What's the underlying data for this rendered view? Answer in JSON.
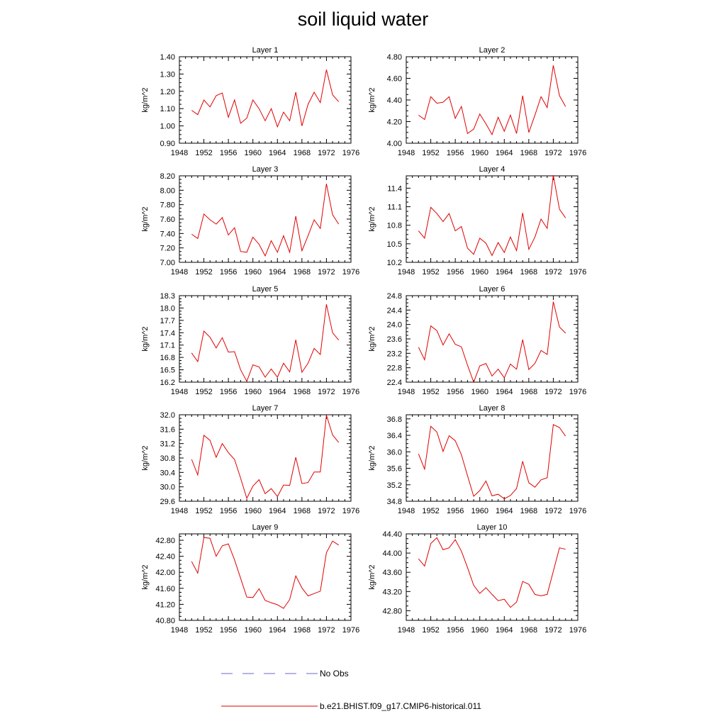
{
  "title": "soil liquid water",
  "legend": {
    "obs_label": "No Obs",
    "model_label": "b.e21.BHIST.f09_g17.CMIP6-historical.011",
    "obs_color": "#6a6acd",
    "model_color": "#e00000"
  },
  "chart_data": [
    {
      "type": "line",
      "title": "Layer 1",
      "ylabel": "kg/m^2",
      "xlim": [
        1948,
        1976
      ],
      "ylim": [
        0.9,
        1.4
      ],
      "xticks": [
        1948,
        1952,
        1956,
        1960,
        1964,
        1968,
        1972,
        1976
      ],
      "yticks": [
        "0.90",
        "1.00",
        "1.10",
        "1.20",
        "1.30",
        "1.40"
      ],
      "x": [
        1950,
        1951,
        1952,
        1953,
        1954,
        1955,
        1956,
        1957,
        1958,
        1959,
        1960,
        1961,
        1962,
        1963,
        1964,
        1965,
        1966,
        1967,
        1968,
        1969,
        1970,
        1971,
        1972,
        1973,
        1974
      ],
      "series": [
        {
          "name": "b.e21.BHIST.f09_g17.CMIP6-historical.011",
          "values": [
            1.09,
            1.065,
            1.15,
            1.11,
            1.175,
            1.19,
            1.05,
            1.15,
            1.015,
            1.045,
            1.15,
            1.1,
            1.03,
            1.1,
            0.995,
            1.08,
            1.03,
            1.195,
            1.0,
            1.125,
            1.195,
            1.135,
            1.325,
            1.18,
            1.14
          ]
        }
      ]
    },
    {
      "type": "line",
      "title": "Layer 2",
      "ylabel": "kg/m^2",
      "xlim": [
        1948,
        1976
      ],
      "ylim": [
        4.0,
        4.8
      ],
      "xticks": [
        1948,
        1952,
        1956,
        1960,
        1964,
        1968,
        1972,
        1976
      ],
      "yticks": [
        "4.00",
        "4.20",
        "4.40",
        "4.60",
        "4.80"
      ],
      "x": [
        1950,
        1951,
        1952,
        1953,
        1954,
        1955,
        1956,
        1957,
        1958,
        1959,
        1960,
        1961,
        1962,
        1963,
        1964,
        1965,
        1966,
        1967,
        1968,
        1969,
        1970,
        1971,
        1972,
        1973,
        1974
      ],
      "series": [
        {
          "name": "b.e21.BHIST.f09_g17.CMIP6-historical.011",
          "values": [
            4.26,
            4.22,
            4.43,
            4.37,
            4.38,
            4.43,
            4.23,
            4.34,
            4.09,
            4.13,
            4.27,
            4.18,
            4.08,
            4.24,
            4.11,
            4.26,
            4.09,
            4.44,
            4.1,
            4.26,
            4.43,
            4.33,
            4.72,
            4.44,
            4.34
          ]
        }
      ]
    },
    {
      "type": "line",
      "title": "Layer 3",
      "ylabel": "kg/m^2",
      "xlim": [
        1948,
        1976
      ],
      "ylim": [
        7.0,
        8.2
      ],
      "xticks": [
        1948,
        1952,
        1956,
        1960,
        1964,
        1968,
        1972,
        1976
      ],
      "yticks": [
        "7.00",
        "7.20",
        "7.40",
        "7.60",
        "7.80",
        "8.00",
        "8.20"
      ],
      "x": [
        1950,
        1951,
        1952,
        1953,
        1954,
        1955,
        1956,
        1957,
        1958,
        1959,
        1960,
        1961,
        1962,
        1963,
        1964,
        1965,
        1966,
        1967,
        1968,
        1969,
        1970,
        1971,
        1972,
        1973,
        1974
      ],
      "series": [
        {
          "name": "b.e21.BHIST.f09_g17.CMIP6-historical.011",
          "values": [
            7.39,
            7.33,
            7.67,
            7.59,
            7.53,
            7.62,
            7.38,
            7.48,
            7.15,
            7.14,
            7.35,
            7.25,
            7.09,
            7.3,
            7.14,
            7.37,
            7.14,
            7.64,
            7.16,
            7.37,
            7.59,
            7.47,
            8.09,
            7.66,
            7.53
          ]
        }
      ]
    },
    {
      "type": "line",
      "title": "Layer 4",
      "ylabel": "kg/m^2",
      "xlim": [
        1948,
        1976
      ],
      "ylim": [
        10.2,
        11.6
      ],
      "xticks": [
        1948,
        1952,
        1956,
        1960,
        1964,
        1968,
        1972,
        1976
      ],
      "yticks": [
        "10.2",
        "10.5",
        "10.8",
        "11.1",
        "11.4"
      ],
      "x": [
        1950,
        1951,
        1952,
        1953,
        1954,
        1955,
        1956,
        1957,
        1958,
        1959,
        1960,
        1961,
        1962,
        1963,
        1964,
        1965,
        1966,
        1967,
        1968,
        1969,
        1970,
        1971,
        1972,
        1973,
        1974
      ],
      "series": [
        {
          "name": "b.e21.BHIST.f09_g17.CMIP6-historical.011",
          "values": [
            10.71,
            10.59,
            11.09,
            10.99,
            10.86,
            10.99,
            10.71,
            10.78,
            10.43,
            10.33,
            10.59,
            10.51,
            10.31,
            10.52,
            10.36,
            10.61,
            10.39,
            11.0,
            10.41,
            10.61,
            10.9,
            10.75,
            11.61,
            11.06,
            10.92
          ]
        }
      ]
    },
    {
      "type": "line",
      "title": "Layer 5",
      "ylabel": "kg/m^2",
      "xlim": [
        1948,
        1976
      ],
      "ylim": [
        16.2,
        18.3
      ],
      "xticks": [
        1948,
        1952,
        1956,
        1960,
        1964,
        1968,
        1972,
        1976
      ],
      "yticks": [
        "16.2",
        "16.5",
        "16.8",
        "17.1",
        "17.4",
        "17.7",
        "18.0",
        "18.3"
      ],
      "x": [
        1950,
        1951,
        1952,
        1953,
        1954,
        1955,
        1956,
        1957,
        1958,
        1959,
        1960,
        1961,
        1962,
        1963,
        1964,
        1965,
        1966,
        1967,
        1968,
        1969,
        1970,
        1971,
        1972,
        1973,
        1974
      ],
      "series": [
        {
          "name": "b.e21.BHIST.f09_g17.CMIP6-historical.011",
          "values": [
            16.91,
            16.7,
            17.44,
            17.29,
            17.03,
            17.28,
            16.93,
            16.94,
            16.5,
            16.22,
            16.62,
            16.57,
            16.32,
            16.52,
            16.32,
            16.66,
            16.45,
            17.23,
            16.44,
            16.66,
            17.02,
            16.87,
            18.09,
            17.4,
            17.22
          ]
        }
      ]
    },
    {
      "type": "line",
      "title": "Layer 6",
      "ylabel": "kg/m^2",
      "xlim": [
        1948,
        1976
      ],
      "ylim": [
        22.4,
        24.8
      ],
      "xticks": [
        1948,
        1952,
        1956,
        1960,
        1964,
        1968,
        1972,
        1976
      ],
      "yticks": [
        "22.4",
        "22.8",
        "23.2",
        "23.6",
        "24.0",
        "24.4",
        "24.8"
      ],
      "x": [
        1950,
        1951,
        1952,
        1953,
        1954,
        1955,
        1956,
        1957,
        1958,
        1959,
        1960,
        1961,
        1962,
        1963,
        1964,
        1965,
        1966,
        1967,
        1968,
        1969,
        1970,
        1971,
        1972,
        1973,
        1974
      ],
      "series": [
        {
          "name": "b.e21.BHIST.f09_g17.CMIP6-historical.011",
          "values": [
            23.37,
            23.02,
            23.96,
            23.83,
            23.43,
            23.74,
            23.45,
            23.38,
            22.87,
            22.4,
            22.85,
            22.92,
            22.57,
            22.76,
            22.52,
            22.9,
            22.76,
            23.58,
            22.75,
            22.92,
            23.28,
            23.17,
            24.63,
            23.93,
            23.76
          ]
        }
      ]
    },
    {
      "type": "line",
      "title": "Layer 7",
      "ylabel": "kg/m^2",
      "xlim": [
        1948,
        1976
      ],
      "ylim": [
        29.6,
        32.0
      ],
      "xticks": [
        1948,
        1952,
        1956,
        1960,
        1964,
        1968,
        1972,
        1976
      ],
      "yticks": [
        "29.6",
        "30.0",
        "30.4",
        "30.8",
        "31.2",
        "31.6",
        "32.0"
      ],
      "x": [
        1950,
        1951,
        1952,
        1953,
        1954,
        1955,
        1956,
        1957,
        1958,
        1959,
        1960,
        1961,
        1962,
        1963,
        1964,
        1965,
        1966,
        1967,
        1968,
        1969,
        1970,
        1971,
        1972,
        1973,
        1974
      ],
      "series": [
        {
          "name": "b.e21.BHIST.f09_g17.CMIP6-historical.011",
          "values": [
            30.76,
            30.33,
            31.43,
            31.29,
            30.82,
            31.2,
            30.95,
            30.76,
            30.24,
            29.68,
            30.02,
            30.2,
            29.81,
            29.95,
            29.73,
            30.05,
            30.04,
            30.82,
            30.09,
            30.12,
            30.41,
            30.41,
            31.99,
            31.44,
            31.23
          ]
        }
      ]
    },
    {
      "type": "line",
      "title": "Layer 8",
      "ylabel": "kg/m^2",
      "xlim": [
        1948,
        1976
      ],
      "ylim": [
        34.8,
        36.9
      ],
      "xticks": [
        1948,
        1952,
        1956,
        1960,
        1964,
        1968,
        1972,
        1976
      ],
      "yticks": [
        "34.8",
        "35.2",
        "35.6",
        "36.0",
        "36.4",
        "36.8"
      ],
      "x": [
        1950,
        1951,
        1952,
        1953,
        1954,
        1955,
        1956,
        1957,
        1958,
        1959,
        1960,
        1961,
        1962,
        1963,
        1964,
        1965,
        1966,
        1967,
        1968,
        1969,
        1970,
        1971,
        1972,
        1973,
        1974
      ],
      "series": [
        {
          "name": "b.e21.BHIST.f09_g17.CMIP6-historical.011",
          "values": [
            35.95,
            35.58,
            36.62,
            36.48,
            36.01,
            36.39,
            36.27,
            35.93,
            35.42,
            34.92,
            35.06,
            35.29,
            34.93,
            34.97,
            34.86,
            34.94,
            35.11,
            35.77,
            35.25,
            35.14,
            35.32,
            35.37,
            36.66,
            36.59,
            36.38
          ]
        }
      ]
    },
    {
      "type": "line",
      "title": "Layer 9",
      "ylabel": "kg/m^2",
      "xlim": [
        1948,
        1976
      ],
      "ylim": [
        40.8,
        42.96
      ],
      "xticks": [
        1948,
        1952,
        1956,
        1960,
        1964,
        1968,
        1972,
        1976
      ],
      "yticks": [
        "40.80",
        "41.20",
        "41.60",
        "42.00",
        "42.40",
        "42.80"
      ],
      "x": [
        1950,
        1951,
        1952,
        1953,
        1954,
        1955,
        1956,
        1957,
        1958,
        1959,
        1960,
        1961,
        1962,
        1963,
        1964,
        1965,
        1966,
        1967,
        1968,
        1969,
        1970,
        1971,
        1972,
        1973,
        1974
      ],
      "series": [
        {
          "name": "b.e21.BHIST.f09_g17.CMIP6-historical.011",
          "values": [
            42.27,
            41.98,
            42.87,
            42.85,
            42.4,
            42.66,
            42.71,
            42.31,
            41.85,
            41.38,
            41.37,
            41.59,
            41.3,
            41.24,
            41.19,
            41.1,
            41.32,
            41.91,
            41.61,
            41.41,
            41.47,
            41.53,
            42.49,
            42.78,
            42.68
          ]
        }
      ]
    },
    {
      "type": "line",
      "title": "Layer 10",
      "ylabel": "kg/m^2",
      "xlim": [
        1948,
        1976
      ],
      "ylim": [
        42.6,
        44.4
      ],
      "xticks": [
        1948,
        1952,
        1956,
        1960,
        1964,
        1968,
        1972,
        1976
      ],
      "yticks": [
        "42.80",
        "43.20",
        "43.60",
        "44.00",
        "44.40"
      ],
      "x": [
        1950,
        1951,
        1952,
        1953,
        1954,
        1955,
        1956,
        1957,
        1958,
        1959,
        1960,
        1961,
        1962,
        1963,
        1964,
        1965,
        1966,
        1967,
        1968,
        1969,
        1970,
        1971,
        1972,
        1973,
        1974
      ],
      "series": [
        {
          "name": "b.e21.BHIST.f09_g17.CMIP6-historical.011",
          "values": [
            43.88,
            43.73,
            44.2,
            44.32,
            44.07,
            44.11,
            44.28,
            44.04,
            43.7,
            43.33,
            43.16,
            43.28,
            43.14,
            43.01,
            43.04,
            42.87,
            42.98,
            43.41,
            43.35,
            43.14,
            43.11,
            43.14,
            43.62,
            44.11,
            44.08
          ]
        }
      ]
    }
  ]
}
